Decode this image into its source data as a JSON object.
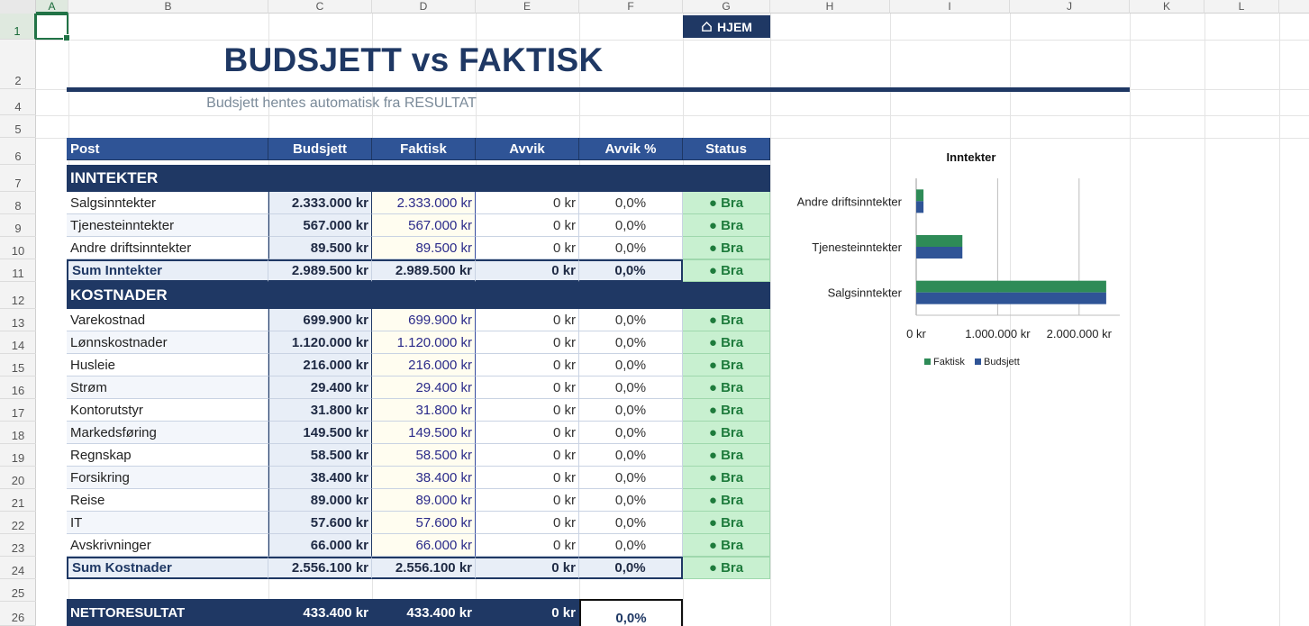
{
  "sheet": {
    "columns": [
      "A",
      "B",
      "C",
      "D",
      "E",
      "F",
      "G",
      "H",
      "I",
      "J",
      "K",
      "L"
    ],
    "selected_column": "A",
    "rows": [
      "1",
      "2",
      "4",
      "5",
      "6",
      "7",
      "8",
      "9",
      "10",
      "11",
      "12",
      "13",
      "14",
      "15",
      "16",
      "17",
      "18",
      "19",
      "20",
      "21",
      "22",
      "23",
      "24",
      "25",
      "26"
    ],
    "selected_row": "1"
  },
  "home_button": {
    "label": "HJEM",
    "icon": "home-icon"
  },
  "title": "BUDSJETT vs FAKTISK",
  "subtitle": "Budsjett hentes automatisk fra RESULTAT",
  "table": {
    "headers": [
      "Post",
      "Budsjett",
      "Faktisk",
      "Avvik",
      "Avvik %",
      "Status"
    ],
    "income_section": "INNTEKTER",
    "income_rows": [
      {
        "post": "Salgsinntekter",
        "budsjett": "2.333.000 kr",
        "faktisk": "2.333.000 kr",
        "avvik": "0 kr",
        "avvik_pct": "0,0%",
        "status": "● Bra"
      },
      {
        "post": "Tjenesteinntekter",
        "budsjett": "567.000 kr",
        "faktisk": "567.000 kr",
        "avvik": "0 kr",
        "avvik_pct": "0,0%",
        "status": "● Bra"
      },
      {
        "post": "Andre driftsinntekter",
        "budsjett": "89.500 kr",
        "faktisk": "89.500 kr",
        "avvik": "0 kr",
        "avvik_pct": "0,0%",
        "status": "● Bra"
      }
    ],
    "income_sum": {
      "post": "Sum Inntekter",
      "budsjett": "2.989.500 kr",
      "faktisk": "2.989.500 kr",
      "avvik": "0 kr",
      "avvik_pct": "0,0%",
      "status": "● Bra"
    },
    "cost_section": "KOSTNADER",
    "cost_rows": [
      {
        "post": "Varekostnad",
        "budsjett": "699.900 kr",
        "faktisk": "699.900 kr",
        "avvik": "0 kr",
        "avvik_pct": "0,0%",
        "status": "● Bra"
      },
      {
        "post": "Lønnskostnader",
        "budsjett": "1.120.000 kr",
        "faktisk": "1.120.000 kr",
        "avvik": "0 kr",
        "avvik_pct": "0,0%",
        "status": "● Bra"
      },
      {
        "post": "Husleie",
        "budsjett": "216.000 kr",
        "faktisk": "216.000 kr",
        "avvik": "0 kr",
        "avvik_pct": "0,0%",
        "status": "● Bra"
      },
      {
        "post": "Strøm",
        "budsjett": "29.400 kr",
        "faktisk": "29.400 kr",
        "avvik": "0 kr",
        "avvik_pct": "0,0%",
        "status": "● Bra"
      },
      {
        "post": "Kontorutstyr",
        "budsjett": "31.800 kr",
        "faktisk": "31.800 kr",
        "avvik": "0 kr",
        "avvik_pct": "0,0%",
        "status": "● Bra"
      },
      {
        "post": "Markedsføring",
        "budsjett": "149.500 kr",
        "faktisk": "149.500 kr",
        "avvik": "0 kr",
        "avvik_pct": "0,0%",
        "status": "● Bra"
      },
      {
        "post": "Regnskap",
        "budsjett": "58.500 kr",
        "faktisk": "58.500 kr",
        "avvik": "0 kr",
        "avvik_pct": "0,0%",
        "status": "● Bra"
      },
      {
        "post": "Forsikring",
        "budsjett": "38.400 kr",
        "faktisk": "38.400 kr",
        "avvik": "0 kr",
        "avvik_pct": "0,0%",
        "status": "● Bra"
      },
      {
        "post": "Reise",
        "budsjett": "89.000 kr",
        "faktisk": "89.000 kr",
        "avvik": "0 kr",
        "avvik_pct": "0,0%",
        "status": "● Bra"
      },
      {
        "post": "IT",
        "budsjett": "57.600 kr",
        "faktisk": "57.600 kr",
        "avvik": "0 kr",
        "avvik_pct": "0,0%",
        "status": "● Bra"
      },
      {
        "post": "Avskrivninger",
        "budsjett": "66.000 kr",
        "faktisk": "66.000 kr",
        "avvik": "0 kr",
        "avvik_pct": "0,0%",
        "status": "● Bra"
      }
    ],
    "cost_sum": {
      "post": "Sum Kostnader",
      "budsjett": "2.556.100 kr",
      "faktisk": "2.556.100 kr",
      "avvik": "0 kr",
      "avvik_pct": "0,0%",
      "status": "● Bra"
    },
    "netto": {
      "post": "NETTORESULTAT",
      "budsjett": "433.400 kr",
      "faktisk": "433.400 kr",
      "avvik": "0 kr",
      "avvik_pct": "0,0%"
    }
  },
  "colors": {
    "navy": "#1f3864",
    "header_blue": "#2f5496",
    "status_green_bg": "#c8f0d0",
    "status_green_text": "#1e7b3c",
    "faktisk_series": "#2e8b57",
    "budsjett_series": "#2f5496"
  },
  "chart_data": {
    "type": "bar",
    "orientation": "horizontal",
    "title": "Inntekter",
    "categories": [
      "Salgsinntekter",
      "Tjenesteinntekter",
      "Andre driftsinntekter"
    ],
    "series": [
      {
        "name": "Faktisk",
        "values": [
          2333000,
          567000,
          89500
        ],
        "color": "#2e8b57"
      },
      {
        "name": "Budsjett",
        "values": [
          2333000,
          567000,
          89500
        ],
        "color": "#2f5496"
      }
    ],
    "xlim": [
      0,
      2500000
    ],
    "xticks": [
      0,
      1000000,
      2000000
    ],
    "xtick_labels": [
      "0 kr",
      "1.000.000 kr",
      "2.000.000 kr"
    ],
    "grid": true,
    "legend": "bottom"
  }
}
